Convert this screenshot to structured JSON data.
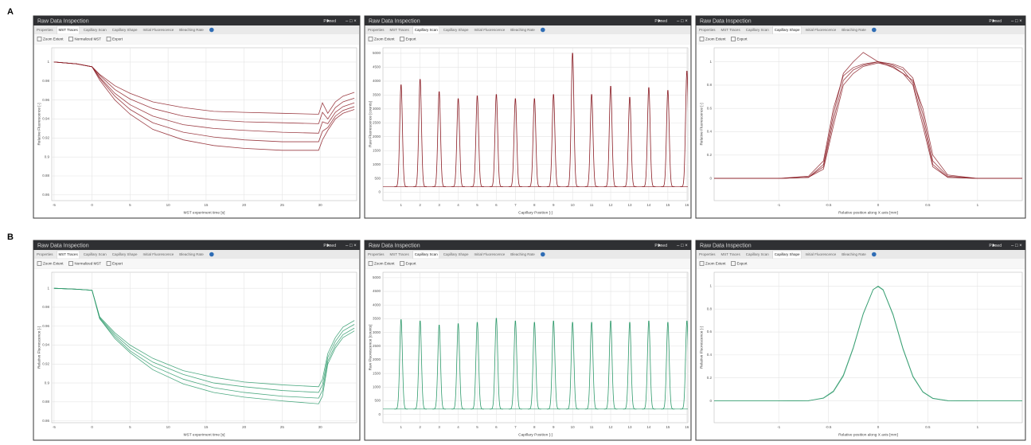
{
  "panel_labels": [
    "A",
    "B"
  ],
  "windows": [
    {
      "title": "Raw Data Inspection",
      "pinned": "Pinned",
      "tabs": [
        "Properties",
        "MST Traces",
        "Capillary Scan",
        "Capillary Shape",
        "Initial Fluorescence",
        "Bleaching Rate"
      ],
      "active_tab": 1,
      "toolbar": [
        "Zoom Extent",
        "Normalized MST",
        "Export"
      ]
    },
    {
      "title": "Raw Data Inspection",
      "pinned": "Pinned",
      "tabs": [
        "Properties",
        "MST Traces",
        "Capillary Scan",
        "Capillary Shape",
        "Initial Fluorescence",
        "Bleaching Rate"
      ],
      "active_tab": 2,
      "toolbar": [
        "Zoom Extent",
        "Export"
      ]
    },
    {
      "title": "Raw Data Inspection",
      "pinned": "Pinned",
      "tabs": [
        "Properties",
        "MST Traces",
        "Capillary Scan",
        "Capillary Shape",
        "Initial Fluorescence",
        "Bleaching Rate"
      ],
      "active_tab": 3,
      "toolbar": [
        "Zoom Extent",
        "Export"
      ]
    },
    {
      "title": "Raw Data Inspection",
      "pinned": "Pinned",
      "tabs": [
        "Properties",
        "MST Traces",
        "Capillary Scan",
        "Capillary Shape",
        "Initial Fluorescence",
        "Bleaching Rate"
      ],
      "active_tab": 1,
      "toolbar": [
        "Zoom Extent",
        "Normalized MST",
        "Export"
      ]
    },
    {
      "title": "Raw Data Inspection",
      "pinned": "Pinned",
      "tabs": [
        "Properties",
        "MST Traces",
        "Capillary Scan",
        "Capillary Shape",
        "Initial Fluorescence",
        "Bleaching Rate"
      ],
      "active_tab": 2,
      "toolbar": [
        "Zoom Extent",
        "Export"
      ]
    },
    {
      "title": "Raw Data Inspection",
      "pinned": "Pinned",
      "tabs": [
        "Properties",
        "MST Traces",
        "Capillary Scan",
        "Capillary Shape",
        "Initial Fluorescence",
        "Bleaching Rate"
      ],
      "active_tab": 3,
      "toolbar": [
        "Zoom Extent",
        "Export"
      ]
    }
  ],
  "chart_data": [
    {
      "type": "line",
      "x_label": "MST experiment time [s]",
      "y_label": "Relative Fluorescence [-]",
      "grid": true,
      "xlim": [
        -5.3,
        34.8
      ],
      "ylim": [
        0.854,
        1.015
      ],
      "xticks": [
        -5,
        0,
        5,
        10,
        15,
        20,
        25,
        30
      ],
      "yticks": [
        0.86,
        0.88,
        0.9,
        0.92,
        0.94,
        0.96,
        0.98,
        1
      ],
      "x": [
        -5,
        -2,
        0,
        1,
        3,
        5,
        8,
        12,
        16,
        20,
        25,
        29.8,
        30.3,
        31,
        32,
        33,
        34.5
      ],
      "series": [
        {
          "color": "#8b1c24",
          "values": [
            1.0,
            0.998,
            0.995,
            0.981,
            0.96,
            0.945,
            0.929,
            0.918,
            0.912,
            0.909,
            0.907,
            0.907,
            0.918,
            0.928,
            0.94,
            0.946,
            0.95
          ]
        },
        {
          "color": "#8b1c24",
          "values": [
            1.0,
            0.998,
            0.995,
            0.983,
            0.964,
            0.95,
            0.936,
            0.926,
            0.921,
            0.918,
            0.916,
            0.916,
            0.927,
            0.931,
            0.943,
            0.949,
            0.953
          ]
        },
        {
          "color": "#8b1c24",
          "values": [
            1.0,
            0.998,
            0.995,
            0.984,
            0.967,
            0.955,
            0.943,
            0.934,
            0.93,
            0.928,
            0.926,
            0.925,
            0.937,
            0.935,
            0.947,
            0.953,
            0.957
          ]
        },
        {
          "color": "#8b1c24",
          "values": [
            1.0,
            0.998,
            0.995,
            0.986,
            0.971,
            0.961,
            0.951,
            0.943,
            0.939,
            0.937,
            0.936,
            0.935,
            0.947,
            0.94,
            0.952,
            0.958,
            0.962
          ]
        },
        {
          "color": "#8b1c24",
          "values": [
            1.0,
            0.998,
            0.995,
            0.987,
            0.975,
            0.967,
            0.958,
            0.952,
            0.948,
            0.947,
            0.946,
            0.945,
            0.957,
            0.946,
            0.958,
            0.964,
            0.968
          ]
        }
      ]
    },
    {
      "type": "peaks",
      "x_label": "Capillary Position [-]",
      "y_label": "Raw Fluorescence [counts]",
      "grid": true,
      "xlim": [
        0.05,
        16.05
      ],
      "ylim": [
        -300,
        5200
      ],
      "xticks": [
        1,
        2,
        3,
        4,
        5,
        6,
        7,
        8,
        9,
        10,
        11,
        12,
        13,
        14,
        15,
        16
      ],
      "yticks": [
        0,
        500,
        1000,
        1500,
        2000,
        2500,
        3000,
        3500,
        4000,
        4500,
        5000
      ],
      "color": "#8b1c24",
      "baseline": 200,
      "positions": [
        1,
        2,
        3,
        4,
        5,
        6,
        7,
        8,
        9,
        10,
        11,
        12,
        13,
        14,
        15,
        16
      ],
      "values": [
        3900,
        4100,
        3650,
        3400,
        3500,
        3550,
        3400,
        3400,
        3550,
        5050,
        3550,
        3850,
        3450,
        3800,
        3700,
        4400
      ]
    },
    {
      "type": "line",
      "x_label": "Relative position along X axis [mm]",
      "y_label": "Relative Fluorescence [-]",
      "grid": true,
      "xlim": [
        -1.65,
        1.45
      ],
      "ylim": [
        -0.19,
        1.12
      ],
      "xticks": [
        -1,
        -0.5,
        0,
        0.5,
        1
      ],
      "yticks": [
        0,
        0.2,
        0.4,
        0.6,
        0.8,
        1
      ],
      "x": [
        -1.65,
        -1,
        -0.7,
        -0.55,
        -0.45,
        -0.35,
        -0.25,
        -0.15,
        0,
        0.15,
        0.25,
        0.35,
        0.45,
        0.55,
        0.7,
        1,
        1.45
      ],
      "series": [
        {
          "color": "#8b1c24",
          "values": [
            0,
            0,
            0.01,
            0.1,
            0.5,
            0.84,
            0.93,
            0.97,
            1,
            0.97,
            0.93,
            0.82,
            0.5,
            0.12,
            0.01,
            0,
            0
          ]
        },
        {
          "color": "#8b1c24",
          "values": [
            0,
            0,
            0.02,
            0.15,
            0.6,
            0.88,
            0.95,
            0.98,
            1,
            0.98,
            0.95,
            0.86,
            0.55,
            0.15,
            0.02,
            0,
            0
          ]
        },
        {
          "color": "#8b1c24",
          "values": [
            0,
            0,
            0.01,
            0.08,
            0.45,
            0.8,
            0.9,
            0.96,
            0.99,
            0.96,
            0.9,
            0.8,
            0.45,
            0.1,
            0.01,
            0,
            0
          ]
        },
        {
          "color": "#8b1c24",
          "values": [
            0,
            0,
            0.01,
            0.12,
            0.55,
            0.9,
            1.0,
            1.08,
            1.0,
            0.95,
            0.9,
            0.84,
            0.6,
            0.2,
            0.03,
            0,
            0
          ]
        }
      ]
    },
    {
      "type": "line",
      "x_label": "MST experiment time [s]",
      "y_label": "Relative Fluorescence [-]",
      "grid": true,
      "xlim": [
        -5.3,
        34.8
      ],
      "ylim": [
        0.858,
        1.017
      ],
      "xticks": [
        -5,
        0,
        5,
        10,
        15,
        20,
        25,
        30
      ],
      "yticks": [
        0.86,
        0.88,
        0.9,
        0.92,
        0.94,
        0.96,
        0.98,
        1
      ],
      "x": [
        -5,
        -2,
        0,
        1,
        3,
        5,
        8,
        12,
        16,
        20,
        25,
        29.8,
        30.3,
        31,
        32,
        33,
        34.5
      ],
      "series": [
        {
          "color": "#2e9a6b",
          "values": [
            1.0,
            0.999,
            0.998,
            0.968,
            0.947,
            0.932,
            0.914,
            0.899,
            0.89,
            0.885,
            0.881,
            0.878,
            0.886,
            0.92,
            0.937,
            0.948,
            0.955
          ]
        },
        {
          "color": "#2e9a6b",
          "values": [
            1.0,
            0.999,
            0.998,
            0.968,
            0.949,
            0.934,
            0.918,
            0.904,
            0.895,
            0.89,
            0.886,
            0.884,
            0.892,
            0.923,
            0.94,
            0.951,
            0.958
          ]
        },
        {
          "color": "#2e9a6b",
          "values": [
            1.0,
            0.999,
            0.998,
            0.969,
            0.951,
            0.937,
            0.922,
            0.909,
            0.9,
            0.896,
            0.892,
            0.89,
            0.898,
            0.927,
            0.944,
            0.955,
            0.962
          ]
        },
        {
          "color": "#2e9a6b",
          "values": [
            1.0,
            0.999,
            0.998,
            0.97,
            0.953,
            0.94,
            0.926,
            0.913,
            0.906,
            0.901,
            0.898,
            0.896,
            0.904,
            0.931,
            0.948,
            0.959,
            0.966
          ]
        }
      ]
    },
    {
      "type": "peaks",
      "x_label": "Capillary Position [-]",
      "y_label": "Raw Fluorescence [counts]",
      "grid": true,
      "xlim": [
        0.05,
        16.05
      ],
      "ylim": [
        -300,
        5200
      ],
      "xticks": [
        1,
        2,
        3,
        4,
        5,
        6,
        7,
        8,
        9,
        10,
        11,
        12,
        13,
        14,
        15,
        16
      ],
      "yticks": [
        0,
        500,
        1000,
        1500,
        2000,
        2500,
        3000,
        3500,
        4000,
        4500,
        5000
      ],
      "color": "#2e9a6b",
      "baseline": 200,
      "positions": [
        1,
        2,
        3,
        4,
        5,
        6,
        7,
        8,
        9,
        10,
        11,
        12,
        13,
        14,
        15,
        16
      ],
      "values": [
        3500,
        3450,
        3300,
        3350,
        3400,
        3550,
        3450,
        3400,
        3450,
        3400,
        3400,
        3450,
        3400,
        3450,
        3400,
        3450
      ]
    },
    {
      "type": "line",
      "x_label": "Relative position along X axis [mm]",
      "y_label": "Relative Fluorescence [-]",
      "grid": true,
      "xlim": [
        -1.65,
        1.45
      ],
      "ylim": [
        -0.19,
        1.12
      ],
      "xticks": [
        -1,
        -0.5,
        0,
        0.5,
        1
      ],
      "yticks": [
        0,
        0.2,
        0.4,
        0.6,
        0.8,
        1
      ],
      "x": [
        -1.65,
        -1,
        -0.7,
        -0.55,
        -0.45,
        -0.35,
        -0.25,
        -0.15,
        -0.05,
        0,
        0.05,
        0.15,
        0.25,
        0.35,
        0.45,
        0.55,
        0.7,
        1,
        1.45
      ],
      "series": [
        {
          "color": "#2e9a6b",
          "values": [
            0,
            0,
            0.002,
            0.023,
            0.08,
            0.216,
            0.458,
            0.755,
            0.969,
            1,
            0.969,
            0.755,
            0.458,
            0.216,
            0.08,
            0.023,
            0.002,
            0,
            0
          ]
        },
        {
          "color": "#2e9a6b",
          "values": [
            0,
            0,
            0.002,
            0.026,
            0.086,
            0.225,
            0.466,
            0.76,
            0.97,
            0.995,
            0.965,
            0.748,
            0.45,
            0.21,
            0.076,
            0.021,
            0.002,
            0,
            0
          ]
        }
      ]
    }
  ]
}
